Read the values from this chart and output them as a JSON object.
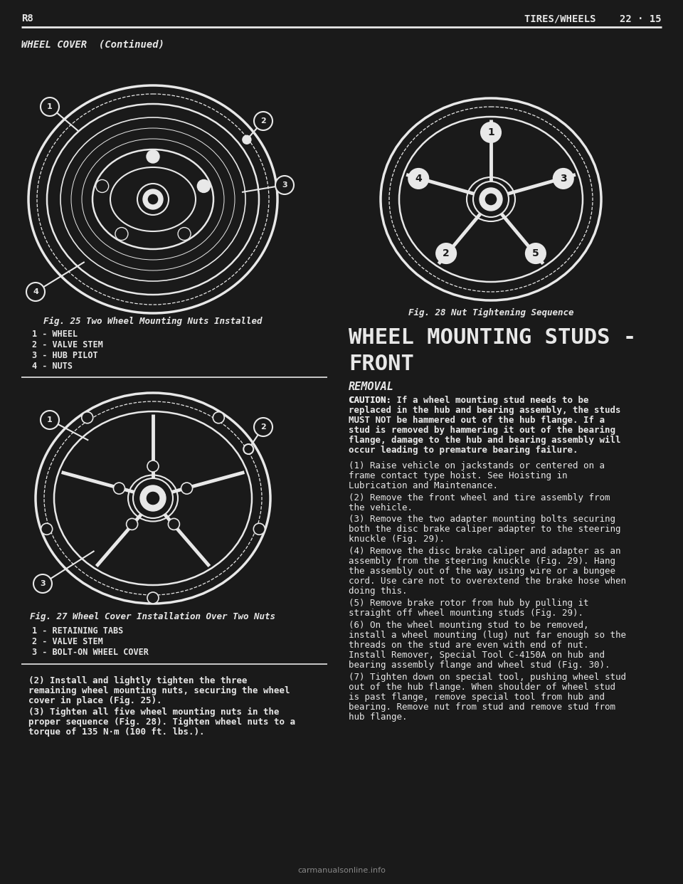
{
  "bg_color": "#1a1a1a",
  "text_color": "#e8e8e8",
  "line_color": "#2a2a2a",
  "header_left": "R8",
  "header_right": "TIRES/WHEELS    22 · 15",
  "section_title": "WHEEL COVER  (Continued)",
  "fig25_caption": "Fig. 25 Two Wheel Mounting Nuts Installed",
  "fig25_labels": [
    "1 - WHEEL",
    "2 - VALVE STEM",
    "3 - HUB PILOT",
    "4 - NUTS"
  ],
  "fig27_caption": "Fig. 27 Wheel Cover Installation Over Two Nuts",
  "fig27_labels": [
    "1 - RETAINING TABS",
    "2 - VALVE STEM",
    "3 - BOLT-ON WHEEL COVER"
  ],
  "fig28_caption": "Fig. 28 Nut Tightening Sequence",
  "right_section_title_line1": "WHEEL MOUNTING STUDS -",
  "right_section_title_line2": "FRONT",
  "right_subsection": "REMOVAL",
  "right_caution_label": "CAUTION:",
  "right_caution_body": " If a wheel mounting stud needs to be replaced in the hub and bearing assembly, the studs MUST NOT be hammered out of the hub flange. If a stud is removed by hammering it out of the bearing flange, damage to the hub and bearing assembly will occur leading to premature bearing failure.",
  "right_steps": [
    "(1) Raise vehicle on jackstands or centered on a frame contact type hoist. See Hoisting in Lubrication and Maintenance.",
    "(2) Remove the front wheel and tire assembly from the vehicle.",
    "(3) Remove the two adapter mounting bolts securing both the disc brake caliper adapter to the steering knuckle (Fig. 29).",
    "(4) Remove the disc brake caliper and adapter as an assembly from the steering knuckle (Fig. 29). Hang the assembly out of the way using wire or a bungee cord. Use care not to overextend the brake hose when doing this.",
    "(5) Remove brake rotor from hub by pulling it straight off wheel mounting studs (Fig. 29).",
    "(6) On the wheel mounting stud to be removed, install a wheel mounting (lug) nut far enough so the threads on the stud are even with end of nut. Install Remover, Special Tool C-4150A on hub and bearing assembly flange and wheel stud (Fig. 30).",
    "(7) Tighten down on special tool, pushing wheel stud out of the hub flange. When shoulder of wheel stud is past flange, remove special tool from hub and bearing. Remove nut from stud and remove stud from hub flange."
  ],
  "bottom_para1": "    (2) Install and lightly tighten the three remaining wheel mounting nuts, securing the wheel cover in place (Fig. 25).",
  "bottom_para2": "    (3) Tighten all five wheel mounting nuts in the proper sequence (Fig. 28). Tighten wheel nuts to a torque of 135 N·m (100 ft. lbs.).",
  "footer": "carmanualsonline.info"
}
